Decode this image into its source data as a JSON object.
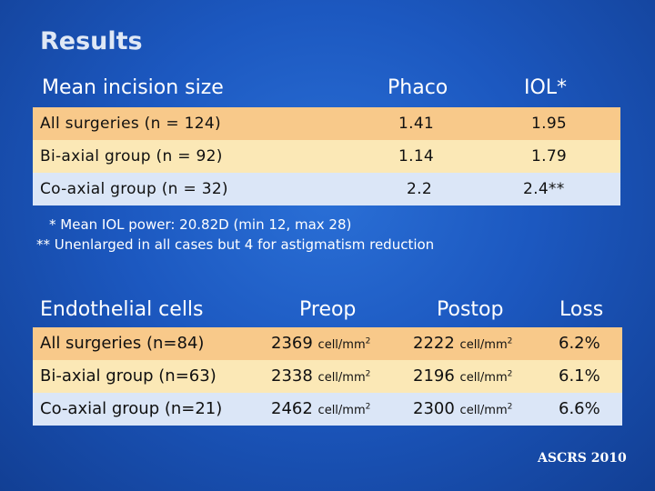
{
  "title": "Results",
  "incision_table": {
    "headers": {
      "label": "Mean incision size",
      "col1": "Phaco",
      "col2": "IOL*"
    },
    "rows": [
      {
        "label": "All surgeries (n = 124)",
        "phaco": "1.41",
        "iol": "1.95",
        "color": "#f8c98a"
      },
      {
        "label": "Bi-axial group (n = 92)",
        "phaco": "1.14",
        "iol": "1.79",
        "color": "#fbe8b6"
      },
      {
        "label": "Co-axial group (n = 32)",
        "phaco": "2.2",
        "iol": "2.4**",
        "color": "#dbe6f7"
      }
    ]
  },
  "notes": [
    "* Mean IOL power: 20.82D (min 12, max 28)",
    "** Unenlarged in all cases but 4 for astigmatism reduction"
  ],
  "endothelial_table": {
    "headers": {
      "label": "Endothelial cells",
      "col1": "Preop",
      "col2": "Postop",
      "col3": "Loss"
    },
    "unit": "cell/mm",
    "unit_sup": "2",
    "rows": [
      {
        "label": "All surgeries (n=84)",
        "preop": "2369",
        "postop": "2222",
        "loss": "6.2%",
        "color": "#f8c98a"
      },
      {
        "label": "Bi-axial group (n=63)",
        "preop": "2338",
        "postop": "2196",
        "loss": "6.1%",
        "color": "#fbe8b6"
      },
      {
        "label": "Co-axial group (n=21)",
        "preop": "2462",
        "postop": "2300",
        "loss": "6.6%",
        "color": "#dbe6f7"
      }
    ]
  },
  "footer": "ASCRS 2010"
}
